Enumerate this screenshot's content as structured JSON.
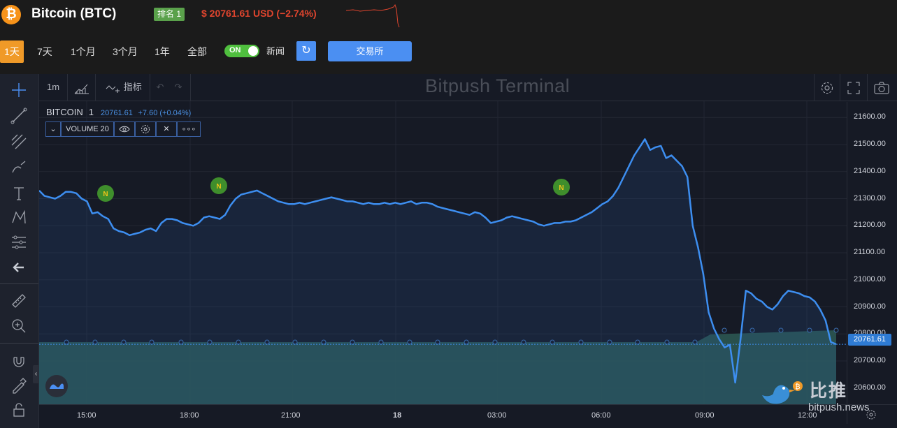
{
  "header": {
    "coin_name": "Bitcoin (BTC)",
    "rank_badge": "排名 1",
    "price_text": "$ 20761.61 USD (−2.74%)",
    "btc_symbol": "₿"
  },
  "ranges": [
    "1天",
    "7天",
    "1个月",
    "3个月",
    "1年",
    "全部"
  ],
  "active_range": "1天",
  "news_toggle": {
    "state": "ON",
    "label": "新闻"
  },
  "refresh_icon": "↻",
  "exchange_button": "交易所",
  "toolbar": {
    "interval": "1m",
    "indicators": "指标",
    "title": "Bitpush Terminal"
  },
  "legend": {
    "symbol": "BITCOIN",
    "interval": "1",
    "last": "20761.61",
    "change": "+7.60 (+0.04%)",
    "volume_label": "VOLUME 20"
  },
  "chart_data": {
    "type": "area",
    "ylim": [
      20540,
      21660
    ],
    "yticks": [
      21600,
      21500,
      21400,
      21300,
      21200,
      21100,
      21000,
      20900,
      20800,
      20700,
      20600
    ],
    "ytick_labels": [
      "21600.00",
      "21500.00",
      "21400.00",
      "21300.00",
      "21200.00",
      "21100.00",
      "21000.00",
      "20900.00",
      "20800.00",
      "20700.00",
      "20600.00"
    ],
    "xticks": [
      "15:00",
      "18:00",
      "21:00",
      "18",
      "03:00",
      "06:00",
      "09:00",
      "12:00"
    ],
    "last_price_label": "20761.61",
    "series": [
      {
        "values": [
          21330,
          21310,
          21305,
          21300,
          21310,
          21325,
          21325,
          21320,
          21300,
          21290,
          21245,
          21250,
          21235,
          21225,
          21190,
          21180,
          21175,
          21165,
          21170,
          21175,
          21185,
          21190,
          21180,
          21210,
          21225,
          21225,
          21220,
          21210,
          21205,
          21200,
          21210,
          21230,
          21235,
          21230,
          21225,
          21240,
          21275,
          21300,
          21315,
          21320,
          21325,
          21330,
          21320,
          21310,
          21300,
          21290,
          21285,
          21280,
          21280,
          21285,
          21280,
          21285,
          21290,
          21295,
          21300,
          21305,
          21300,
          21295,
          21290,
          21290,
          21285,
          21280,
          21285,
          21280,
          21280,
          21285,
          21280,
          21285,
          21280,
          21285,
          21290,
          21280,
          21285,
          21285,
          21280,
          21270,
          21265,
          21260,
          21255,
          21250,
          21245,
          21240,
          21250,
          21245,
          21230,
          21210,
          21215,
          21220,
          21230,
          21235,
          21230,
          21225,
          21220,
          21215,
          21205,
          21200,
          21205,
          21210,
          21210,
          21215,
          21215,
          21220,
          21230,
          21240,
          21250,
          21265,
          21280,
          21290,
          21310,
          21340,
          21380,
          21420,
          21460,
          21490,
          21520,
          21480,
          21490,
          21495,
          21450,
          21460,
          21440,
          21420,
          21380,
          21200,
          21120,
          21020,
          20880,
          20820,
          20780,
          20750,
          20760,
          20620,
          20780,
          20960,
          20950,
          20930,
          20920,
          20900,
          20890,
          20910,
          20940,
          20960,
          20955,
          20950,
          20940,
          20935,
          20920,
          20890,
          20850,
          20770,
          20762
        ]
      }
    ],
    "volume": {
      "label": "VOLUME 20"
    },
    "news_markers": [
      "N",
      "N",
      "N"
    ]
  },
  "watermark": {
    "name": "比推",
    "url": "bitpush.news"
  }
}
